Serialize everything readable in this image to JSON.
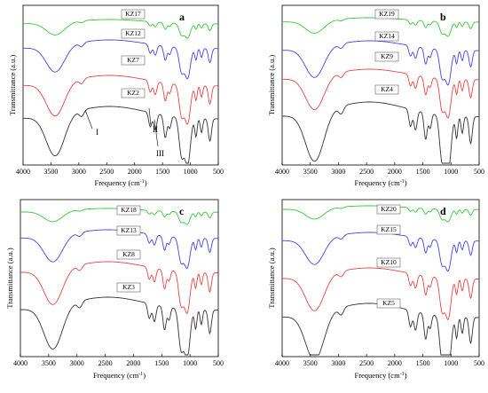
{
  "chart_data": [
    {
      "panel": "a",
      "type": "line",
      "xlabel": "Frequency (cm",
      "xlabel_sup": "-1",
      "xlabel_close": ")",
      "ylabel": "Transmittance (a.u.)",
      "xlim": [
        4000,
        500
      ],
      "x_reversed": true,
      "xticks": [
        "4000",
        "3500",
        "3000",
        "2500",
        "2000",
        "1500",
        "1000",
        "500"
      ],
      "grid": false,
      "series": [
        {
          "name": "KZ17",
          "color": "#33cc33"
        },
        {
          "name": "KZ12",
          "color": "#4444ee"
        },
        {
          "name": "KZ7",
          "color": "#ee4444"
        },
        {
          "name": "KZ2",
          "color": "#333333"
        }
      ],
      "annotations": [
        "I",
        "II",
        "III"
      ]
    },
    {
      "panel": "b",
      "type": "line",
      "xlabel": "Frequency (cm",
      "xlabel_sup": "-1",
      "xlabel_close": ")",
      "ylabel": "Transmittance (a.u.)",
      "xlim": [
        4000,
        500
      ],
      "x_reversed": true,
      "xticks": [
        "4000",
        "3500",
        "3000",
        "2500",
        "2000",
        "1500",
        "1000",
        "500"
      ],
      "grid": false,
      "series": [
        {
          "name": "KZ19",
          "color": "#33cc33"
        },
        {
          "name": "KZ14",
          "color": "#4444ee"
        },
        {
          "name": "KZ9",
          "color": "#ee4444"
        },
        {
          "name": "KZ4",
          "color": "#333333"
        }
      ],
      "annotations": []
    },
    {
      "panel": "c",
      "type": "line",
      "xlabel": "Frequency (cm",
      "xlabel_sup": "-1",
      "xlabel_close": ")",
      "ylabel": "Transmittance (a.u.)",
      "xlim": [
        4000,
        500
      ],
      "x_reversed": true,
      "xticks": [
        "4000",
        "3500",
        "3000",
        "2500",
        "2000",
        "1500",
        "1000",
        "500"
      ],
      "grid": false,
      "series": [
        {
          "name": "KZ18",
          "color": "#33cc33"
        },
        {
          "name": "KZ13",
          "color": "#4444ee"
        },
        {
          "name": "KZ8",
          "color": "#ee4444"
        },
        {
          "name": "KZ3",
          "color": "#333333"
        }
      ],
      "annotations": []
    },
    {
      "panel": "d",
      "type": "line",
      "xlabel": "Frequency (cm",
      "xlabel_sup": "-1",
      "xlabel_close": ")",
      "ylabel": "Transmittance (a.u.)",
      "xlim": [
        4000,
        500
      ],
      "x_reversed": true,
      "xticks": [
        "4000",
        "3500",
        "3000",
        "2500",
        "2000",
        "1500",
        "1000",
        "500"
      ],
      "grid": false,
      "series": [
        {
          "name": "KZ20",
          "color": "#33cc33"
        },
        {
          "name": "KZ15",
          "color": "#4444ee"
        },
        {
          "name": "KZ10",
          "color": "#ee4444"
        },
        {
          "name": "KZ5",
          "color": "#333333"
        }
      ],
      "annotations": []
    }
  ]
}
